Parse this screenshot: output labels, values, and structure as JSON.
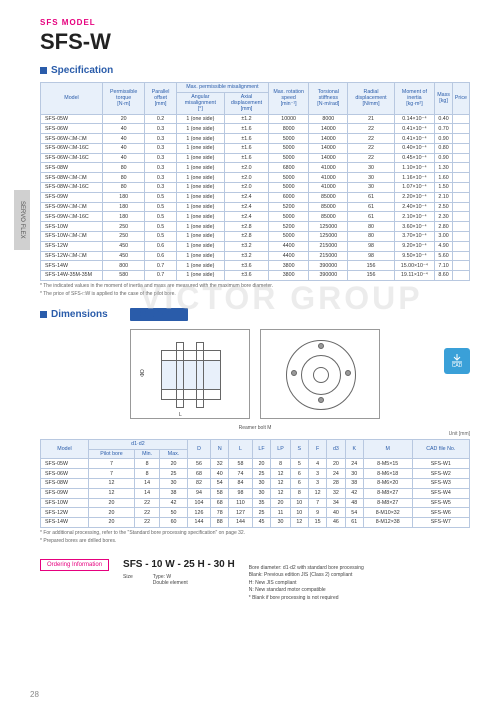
{
  "brand": "SFS MODEL",
  "title": "SFS-W",
  "side_tab": "SERVO FLEX",
  "watermark": "VICTOR GROUP",
  "sections": {
    "spec": "Specification",
    "dim": "Dimensions",
    "dim_pill": "SFS-□W"
  },
  "spec_headers": {
    "model": "Model",
    "torque": "Permissible torque",
    "torque_u": "[N·m]",
    "parallel": "Parallel offset",
    "parallel_u": "[mm]",
    "mis": "Max. permissible misalignment",
    "mis_ang": "Angular misalignment",
    "mis_ang_u": "[°]",
    "mis_ax": "Axial displacement",
    "mis_ax_u": "[mm]",
    "speed": "Max. rotation speed",
    "speed_u": "[min⁻¹]",
    "stiff": "Torsional stiffness",
    "stiff_u": "[N·m/rad]",
    "radial": "Radial displacement",
    "radial_u": "[N/mm]",
    "moi": "Moment of inertia",
    "moi_u": "[kg·m²]",
    "mass": "Mass",
    "mass_u": "[kg]",
    "price": "Price"
  },
  "spec_rows": [
    {
      "m": "SFS-05W",
      "t": "20",
      "p": "0.2",
      "a": "1 (one side)",
      "ax": "±1.2",
      "s": "10000",
      "st": "8000",
      "r": "21",
      "mo": "0.14×10⁻⁴",
      "ms": "0.40",
      "pr": ""
    },
    {
      "m": "SFS-06W",
      "t": "40",
      "p": "0.3",
      "a": "1 (one side)",
      "ax": "±1.6",
      "s": "8000",
      "st": "14000",
      "r": "22",
      "mo": "0.41×10⁻⁴",
      "ms": "0.70",
      "pr": ""
    },
    {
      "m": "SFS-06W-□M-□M",
      "t": "40",
      "p": "0.3",
      "a": "1 (one side)",
      "ax": "±1.6",
      "s": "5000",
      "st": "14000",
      "r": "22",
      "mo": "0.41×10⁻⁴",
      "ms": "0.90",
      "pr": ""
    },
    {
      "m": "SFS-06W-□M-16C",
      "t": "40",
      "p": "0.3",
      "a": "1 (one side)",
      "ax": "±1.6",
      "s": "5000",
      "st": "14000",
      "r": "22",
      "mo": "0.40×10⁻⁴",
      "ms": "0.80",
      "pr": ""
    },
    {
      "m": "SFS-06W-□M-16C",
      "t": "40",
      "p": "0.3",
      "a": "1 (one side)",
      "ax": "±1.6",
      "s": "5000",
      "st": "14000",
      "r": "22",
      "mo": "0.45×10⁻⁴",
      "ms": "0.90",
      "pr": ""
    },
    {
      "m": "SFS-08W",
      "t": "80",
      "p": "0.3",
      "a": "1 (one side)",
      "ax": "±2.0",
      "s": "6800",
      "st": "41000",
      "r": "30",
      "mo": "1.10×10⁻⁴",
      "ms": "1.30",
      "pr": ""
    },
    {
      "m": "SFS-08W-□M-□M",
      "t": "80",
      "p": "0.3",
      "a": "1 (one side)",
      "ax": "±2.0",
      "s": "5000",
      "st": "41000",
      "r": "30",
      "mo": "1.16×10⁻⁴",
      "ms": "1.60",
      "pr": ""
    },
    {
      "m": "SFS-08W-□M-16C",
      "t": "80",
      "p": "0.3",
      "a": "1 (one side)",
      "ax": "±2.0",
      "s": "5000",
      "st": "41000",
      "r": "30",
      "mo": "1.07×10⁻⁴",
      "ms": "1.50",
      "pr": ""
    },
    {
      "m": "SFS-09W",
      "t": "180",
      "p": "0.5",
      "a": "1 (one side)",
      "ax": "±2.4",
      "s": "6000",
      "st": "85000",
      "r": "61",
      "mo": "2.20×10⁻⁴",
      "ms": "2.10",
      "pr": ""
    },
    {
      "m": "SFS-09W-□M-□M",
      "t": "180",
      "p": "0.5",
      "a": "1 (one side)",
      "ax": "±2.4",
      "s": "5200",
      "st": "85000",
      "r": "61",
      "mo": "2.40×10⁻⁴",
      "ms": "2.50",
      "pr": ""
    },
    {
      "m": "SFS-09W-□M-16C",
      "t": "180",
      "p": "0.5",
      "a": "1 (one side)",
      "ax": "±2.4",
      "s": "5000",
      "st": "85000",
      "r": "61",
      "mo": "2.10×10⁻⁴",
      "ms": "2.30",
      "pr": ""
    },
    {
      "m": "SFS-10W",
      "t": "250",
      "p": "0.5",
      "a": "1 (one side)",
      "ax": "±2.8",
      "s": "5200",
      "st": "125000",
      "r": "80",
      "mo": "3.60×10⁻⁴",
      "ms": "2.80",
      "pr": ""
    },
    {
      "m": "SFS-10W-□M-□M",
      "t": "250",
      "p": "0.5",
      "a": "1 (one side)",
      "ax": "±2.8",
      "s": "5000",
      "st": "125000",
      "r": "80",
      "mo": "3.70×10⁻⁴",
      "ms": "3.00",
      "pr": ""
    },
    {
      "m": "SFS-12W",
      "t": "450",
      "p": "0.6",
      "a": "1 (one side)",
      "ax": "±3.2",
      "s": "4400",
      "st": "215000",
      "r": "98",
      "mo": "9.20×10⁻⁴",
      "ms": "4.90",
      "pr": ""
    },
    {
      "m": "SFS-12W-□M-□M",
      "t": "450",
      "p": "0.6",
      "a": "1 (one side)",
      "ax": "±3.2",
      "s": "4400",
      "st": "215000",
      "r": "98",
      "mo": "9.50×10⁻⁴",
      "ms": "5.60",
      "pr": ""
    },
    {
      "m": "SFS-14W",
      "t": "800",
      "p": "0.7",
      "a": "1 (one side)",
      "ax": "±3.6",
      "s": "3800",
      "st": "390000",
      "r": "156",
      "mo": "15.00×10⁻⁴",
      "ms": "7.10",
      "pr": ""
    },
    {
      "m": "SFS-14W-35M-35M",
      "t": "580",
      "p": "0.7",
      "a": "1 (one side)",
      "ax": "±3.6",
      "s": "3800",
      "st": "390000",
      "r": "156",
      "mo": "19.11×10⁻⁴",
      "ms": "8.60",
      "pr": ""
    }
  ],
  "spec_notes": [
    "* The indicated values in the moment of inertia and mass are measured with the maximum bore diameter.",
    "* The price of SFS-□W is applied to the case of the pilot bore."
  ],
  "dim_label": "Reamer bolt M",
  "dim_unit": "Unit [mm]",
  "dim_headers": {
    "model": "Model",
    "d1d2": "d1·d2",
    "pilot": "Pilot bore",
    "min": "Min.",
    "max": "Max.",
    "D": "D",
    "N": "N",
    "L": "L",
    "LF": "LF",
    "LP": "LP",
    "S": "S",
    "F": "F",
    "d3": "d3",
    "K": "K",
    "M": "M",
    "cad": "CAD file No."
  },
  "dim_rows": [
    {
      "m": "SFS-05W",
      "p": "7",
      "mn": "8",
      "mx": "20",
      "D": "56",
      "N": "32",
      "L": "58",
      "LF": "20",
      "LP": "8",
      "S": "5",
      "F": "4",
      "d3": "20",
      "K": "24",
      "M": "8-M5×15",
      "c": "SFS-W1"
    },
    {
      "m": "SFS-06W",
      "p": "7",
      "mn": "8",
      "mx": "25",
      "D": "68",
      "N": "40",
      "L": "74",
      "LF": "25",
      "LP": "12",
      "S": "6",
      "F": "3",
      "d3": "24",
      "K": "30",
      "M": "8-M6×18",
      "c": "SFS-W2"
    },
    {
      "m": "SFS-08W",
      "p": "12",
      "mn": "14",
      "mx": "30",
      "D": "82",
      "N": "54",
      "L": "84",
      "LF": "30",
      "LP": "12",
      "S": "6",
      "F": "3",
      "d3": "28",
      "K": "38",
      "M": "8-M6×20",
      "c": "SFS-W3"
    },
    {
      "m": "SFS-09W",
      "p": "12",
      "mn": "14",
      "mx": "38",
      "D": "94",
      "N": "58",
      "L": "98",
      "LF": "30",
      "LP": "12",
      "S": "8",
      "F": "12",
      "d3": "32",
      "K": "42",
      "M": "8-M8×27",
      "c": "SFS-W4"
    },
    {
      "m": "SFS-10W",
      "p": "20",
      "mn": "22",
      "mx": "42",
      "D": "104",
      "N": "68",
      "L": "110",
      "LF": "35",
      "LP": "20",
      "S": "10",
      "F": "7",
      "d3": "34",
      "K": "48",
      "M": "8-M8×27",
      "c": "SFS-W5"
    },
    {
      "m": "SFS-12W",
      "p": "20",
      "mn": "22",
      "mx": "50",
      "D": "126",
      "N": "78",
      "L": "127",
      "LF": "25",
      "LP": "11",
      "S": "10",
      "F": "9",
      "d3": "40",
      "K": "54",
      "M": "8-M10×32",
      "c": "SFS-W6"
    },
    {
      "m": "SFS-14W",
      "p": "20",
      "mn": "22",
      "mx": "60",
      "D": "144",
      "N": "88",
      "L": "144",
      "LF": "45",
      "LP": "30",
      "S": "12",
      "F": "15",
      "d3": "46",
      "K": "61",
      "M": "8-M12×38",
      "c": "SFS-W7"
    }
  ],
  "dim_notes": [
    "* For additional processing, refer to the \"Standard bore processing specification\" on page 32.",
    "* Prepared bores are drilled bores."
  ],
  "ordering": {
    "btn": "Ordering Information",
    "code": "SFS - 10 W - 25 H - 30 H",
    "labels": {
      "size": "Size",
      "type": "Type: W\nDouble element"
    },
    "notes": "Bore diameter: d1·d2 with standard bore processing\nBlank: Previous edition JIS (Class 2) compliant\nH: New JIS compliant\nN: New standard motor compatible\n* Blank if bore processing is not required"
  },
  "cad_badge": "CAD",
  "pagenum": "28"
}
